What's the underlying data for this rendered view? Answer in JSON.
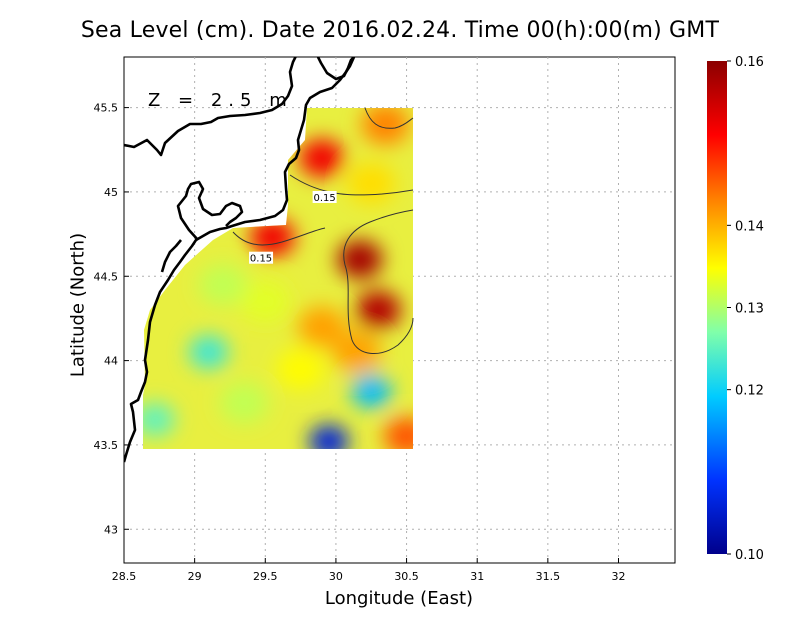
{
  "chart_data": {
    "type": "heatmap",
    "title": "Sea Level (cm). Date 2016.02.24. Time 00(h):00(m) GMT",
    "annotation": "Z = 2.5 m",
    "xlabel": "Longitude (East)",
    "ylabel": "Latitude (North)",
    "xlim": [
      28.5,
      32.4
    ],
    "ylim": [
      42.8,
      45.8
    ],
    "x_ticks": [
      "28.5",
      "29",
      "29.5",
      "30",
      "30.5",
      "31",
      "31.5",
      "32"
    ],
    "y_ticks": [
      "43",
      "43.5",
      "44",
      "44.5",
      "45",
      "45.5"
    ],
    "grid": true,
    "data_extent": {
      "lon": [
        28.65,
        30.55
      ],
      "lat": [
        43.5,
        45.5
      ]
    },
    "colorbar": {
      "vmin": 0.1,
      "vmax": 0.16,
      "ticks": [
        "0.10",
        "0.12",
        "0.13",
        "0.14",
        "0.16"
      ],
      "colors": [
        "#00008b",
        "#0033ff",
        "#00ccff",
        "#80ffaa",
        "#ffff00",
        "#ff8000",
        "#ff0000",
        "#8b0000"
      ]
    },
    "contours": [
      {
        "level": 0.15,
        "label": "0.15",
        "label_lon": 29.92,
        "label_lat": 44.97
      },
      {
        "level": 0.15,
        "label": "0.15",
        "label_lon": 29.47,
        "label_lat": 44.61
      }
    ],
    "field_features": [
      {
        "name": "high",
        "lon": 30.17,
        "lat": 44.6,
        "value": 0.158
      },
      {
        "name": "high",
        "lon": 30.3,
        "lat": 44.3,
        "value": 0.157
      },
      {
        "name": "high",
        "lon": 29.9,
        "lat": 45.2,
        "value": 0.152
      },
      {
        "name": "high",
        "lon": 29.55,
        "lat": 44.73,
        "value": 0.152
      },
      {
        "name": "high",
        "lon": 30.5,
        "lat": 43.55,
        "value": 0.146
      },
      {
        "name": "low",
        "lon": 29.95,
        "lat": 43.52,
        "value": 0.106
      },
      {
        "name": "low",
        "lon": 30.25,
        "lat": 43.82,
        "value": 0.118
      },
      {
        "name": "low",
        "lon": 29.1,
        "lat": 44.05,
        "value": 0.123
      },
      {
        "name": "low",
        "lon": 28.72,
        "lat": 43.65,
        "value": 0.125
      },
      {
        "name": "mid",
        "lon": 29.2,
        "lat": 44.45,
        "value": 0.131
      },
      {
        "name": "mid",
        "lon": 29.5,
        "lat": 44.35,
        "value": 0.133
      },
      {
        "name": "mid",
        "lon": 29.9,
        "lat": 44.2,
        "value": 0.141
      },
      {
        "name": "mid",
        "lon": 30.15,
        "lat": 44.05,
        "value": 0.141
      },
      {
        "name": "mid",
        "lon": 30.25,
        "lat": 45.05,
        "value": 0.137
      },
      {
        "name": "mid",
        "lon": 30.35,
        "lat": 45.4,
        "value": 0.143
      },
      {
        "name": "mid",
        "lon": 29.35,
        "lat": 43.75,
        "value": 0.131
      },
      {
        "name": "mid",
        "lon": 29.75,
        "lat": 43.95,
        "value": 0.135
      }
    ]
  }
}
